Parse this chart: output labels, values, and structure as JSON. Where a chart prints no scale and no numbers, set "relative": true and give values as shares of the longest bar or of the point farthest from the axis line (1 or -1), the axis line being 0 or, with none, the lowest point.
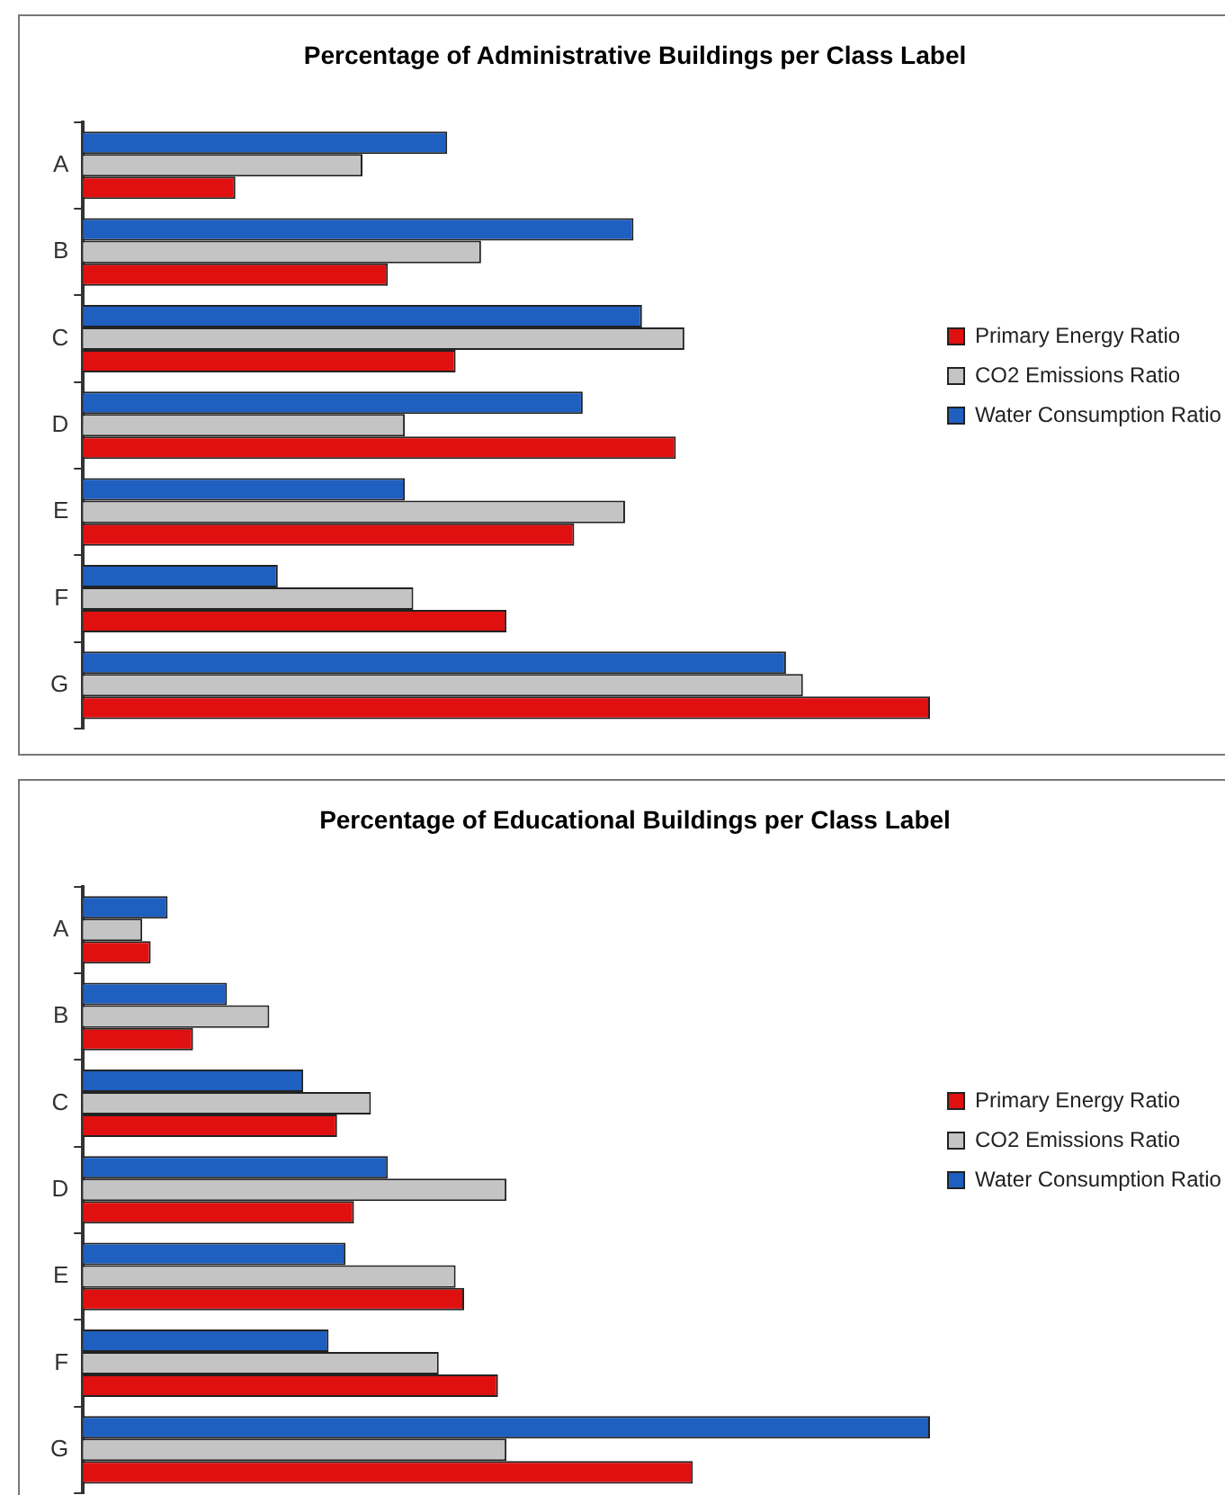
{
  "chart_data": [
    {
      "type": "bar",
      "orientation": "horizontal",
      "relative": true,
      "title": "Percentage of Administrative Buildings per Class Label",
      "categories": [
        "A",
        "B",
        "C",
        "D",
        "E",
        "F",
        "G"
      ],
      "legend": "right",
      "tick_labels": "y",
      "series": [
        {
          "name": "Primary Energy Ratio",
          "color": "#e01010",
          "values": [
            0.18,
            0.36,
            0.44,
            0.7,
            0.58,
            0.5,
            1
          ]
        },
        {
          "name": "CO2 Emissions Ratio",
          "color": "#c4c4c4",
          "values": [
            0.33,
            0.47,
            0.71,
            0.38,
            0.64,
            0.39,
            0.85
          ]
        },
        {
          "name": "Water Consumption Ratio",
          "color": "#1f5fc0",
          "values": [
            0.43,
            0.65,
            0.66,
            0.59,
            0.38,
            0.23,
            0.83
          ]
        }
      ]
    },
    {
      "type": "bar",
      "orientation": "horizontal",
      "relative": true,
      "title": "Percentage of Educational Buildings per Class Label",
      "categories": [
        "A",
        "B",
        "C",
        "D",
        "E",
        "F",
        "G"
      ],
      "legend": "right",
      "tick_labels": "y",
      "series": [
        {
          "name": "Primary Energy Ratio",
          "color": "#e01010",
          "values": [
            0.08,
            0.13,
            0.3,
            0.32,
            0.45,
            0.49,
            0.72
          ]
        },
        {
          "name": "CO2 Emissions Ratio",
          "color": "#c4c4c4",
          "values": [
            0.07,
            0.22,
            0.34,
            0.5,
            0.44,
            0.42,
            0.5
          ]
        },
        {
          "name": "Water Consumption Ratio",
          "color": "#1f5fc0",
          "values": [
            0.1,
            0.17,
            0.26,
            0.36,
            0.31,
            0.29,
            1
          ]
        }
      ]
    }
  ]
}
